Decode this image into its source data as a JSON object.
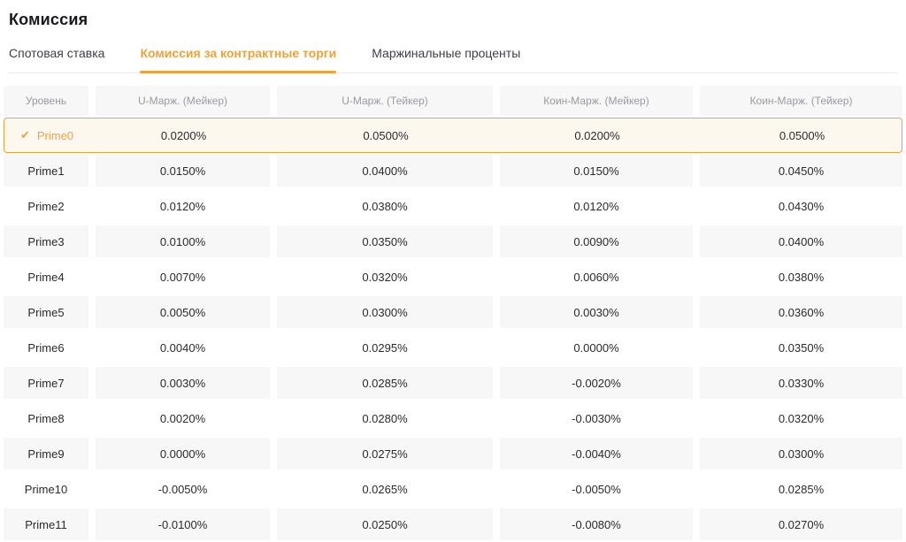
{
  "page": {
    "title": "Комиссия"
  },
  "tabs": [
    {
      "label": "Спотовая ставка",
      "active": false
    },
    {
      "label": "Комиссия за контрактные торги",
      "active": true
    },
    {
      "label": "Маржинальные проценты",
      "active": false
    }
  ],
  "table": {
    "columns": [
      "Уровень",
      "U-Марж. (Мейкер)",
      "U-Марж. (Тейкер)",
      "Коин-Марж. (Мейкер)",
      "Коин-Марж. (Тейкер)"
    ],
    "selected_level": "Prime0",
    "rows": [
      {
        "level": "Prime0",
        "selected": true,
        "values": [
          "0.0200%",
          "0.0500%",
          "0.0200%",
          "0.0500%"
        ]
      },
      {
        "level": "Prime1",
        "selected": false,
        "values": [
          "0.0150%",
          "0.0400%",
          "0.0150%",
          "0.0450%"
        ]
      },
      {
        "level": "Prime2",
        "selected": false,
        "values": [
          "0.0120%",
          "0.0380%",
          "0.0120%",
          "0.0430%"
        ]
      },
      {
        "level": "Prime3",
        "selected": false,
        "values": [
          "0.0100%",
          "0.0350%",
          "0.0090%",
          "0.0400%"
        ]
      },
      {
        "level": "Prime4",
        "selected": false,
        "values": [
          "0.0070%",
          "0.0320%",
          "0.0060%",
          "0.0380%"
        ]
      },
      {
        "level": "Prime5",
        "selected": false,
        "values": [
          "0.0050%",
          "0.0300%",
          "0.0030%",
          "0.0360%"
        ]
      },
      {
        "level": "Prime6",
        "selected": false,
        "values": [
          "0.0040%",
          "0.0295%",
          "0.0000%",
          "0.0350%"
        ]
      },
      {
        "level": "Prime7",
        "selected": false,
        "values": [
          "0.0030%",
          "0.0285%",
          "-0.0020%",
          "0.0330%"
        ]
      },
      {
        "level": "Prime8",
        "selected": false,
        "values": [
          "0.0020%",
          "0.0280%",
          "-0.0030%",
          "0.0320%"
        ]
      },
      {
        "level": "Prime9",
        "selected": false,
        "values": [
          "0.0000%",
          "0.0275%",
          "-0.0040%",
          "0.0300%"
        ]
      },
      {
        "level": "Prime10",
        "selected": false,
        "values": [
          "-0.0050%",
          "0.0265%",
          "-0.0050%",
          "0.0285%"
        ]
      },
      {
        "level": "Prime11",
        "selected": false,
        "values": [
          "-0.0100%",
          "0.0250%",
          "-0.0080%",
          "0.0270%"
        ]
      }
    ]
  },
  "icons": {
    "selected_check": "✔"
  },
  "colors": {
    "accent": "#efa23c",
    "selected_row_bg": "#fdf8ee",
    "stripe_bg": "#f7f7f8",
    "header_text": "#9a9aa0",
    "body_text": "#2a2a2e"
  }
}
